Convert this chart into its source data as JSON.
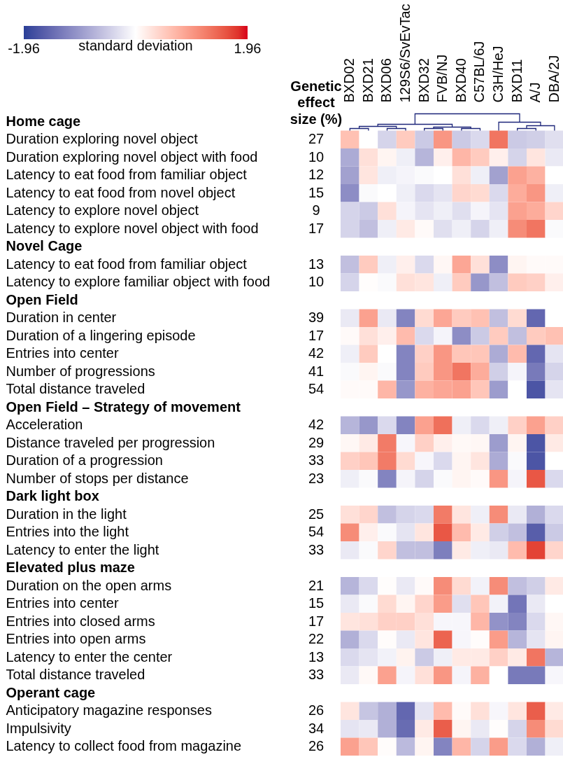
{
  "chart_data": {
    "type": "heatmap",
    "y2label": "Genetic effect size (%)",
    "clabel": "standard deviation",
    "clim": [
      -1.96,
      1.96
    ],
    "cticks": [
      -1.96,
      1.96
    ],
    "categories": [
      "BXD02",
      "BXD21",
      "BXD06",
      "129S6/SvEvTac",
      "BXD32",
      "FVB/NJ",
      "BXD40",
      "C57BL/6J",
      "C3H/HeJ",
      "BXD11",
      "A/J",
      "DBA/2J"
    ],
    "y_categories": [
      "Home cage",
      "Duration exploring novel object",
      "Duration exploring novel object with food",
      "Latency to eat food from familiar object",
      "Latency to eat food from novel object",
      "Latency to explore novel object",
      "Latency to explore novel object with food",
      "Novel Cage",
      "Latency to eat food from familiar object",
      "Latency to explore familiar object with food",
      "Open Field",
      "Duration in center",
      "Duration of a lingering episode",
      "Entries into center",
      "Number of progressions",
      "Total distance traveled",
      "Open Field – Strategy of movement",
      "Acceleration",
      "Distance traveled per progression",
      "Duration of a progression",
      "Number of stops per distance",
      "Dark light box",
      "Duration in the light",
      "Entries into the light",
      "Latency to enter the light",
      "Elevated plus maze",
      "Duration on the open arms",
      "Entries into center",
      "Entries into closed arms",
      "Entries into open arms",
      "Latency to enter the center",
      "Total distance traveled",
      "Operant cage",
      "Anticipatory magazine responses",
      "Impulsivity",
      "Latency to collect food from magazine"
    ],
    "y2_categories": [
      null,
      "27",
      "10",
      "12",
      "15",
      "9",
      "17",
      null,
      "13",
      "10",
      null,
      "39",
      "17",
      "42",
      "41",
      "54",
      null,
      "42",
      "29",
      "33",
      "23",
      null,
      "25",
      "54",
      "33",
      null,
      "21",
      "15",
      "17",
      "22",
      "13",
      "33",
      null,
      "26",
      "34",
      "26"
    ],
    "cells": [
      [
        null,
        null,
        null,
        null,
        null,
        null,
        null,
        null,
        null,
        null,
        null,
        null
      ],
      [
        0.6,
        0.0,
        -0.4,
        0.5,
        -0.5,
        1.0,
        -0.5,
        -0.35,
        1.3,
        -0.5,
        -0.45,
        -0.3
      ],
      [
        -0.8,
        0.3,
        0.1,
        -0.15,
        -0.7,
        0.15,
        0.7,
        0.5,
        0.15,
        -0.4,
        0.25,
        -0.2
      ],
      [
        -0.9,
        0.25,
        -0.15,
        -0.1,
        -0.05,
        0.0,
        0.3,
        -0.15,
        -0.9,
        0.9,
        0.75,
        0.0
      ],
      [
        -1.1,
        -0.05,
        0.0,
        -0.15,
        -0.35,
        -0.25,
        0.4,
        0.35,
        -0.35,
        0.8,
        1.0,
        -0.15
      ],
      [
        -0.4,
        -0.5,
        0.3,
        -0.1,
        -0.25,
        -0.15,
        -0.3,
        -0.1,
        -0.25,
        0.9,
        0.8,
        0.4
      ],
      [
        -0.4,
        -0.6,
        -0.15,
        0.2,
        0.05,
        -0.3,
        -0.15,
        -0.4,
        -0.15,
        1.1,
        1.3,
        -0.05
      ],
      [
        null,
        null,
        null,
        null,
        null,
        null,
        null,
        null,
        null,
        null,
        null,
        null
      ],
      [
        -0.6,
        0.5,
        -0.15,
        0.15,
        -0.35,
        0.08,
        0.85,
        0.3,
        -1.1,
        0.1,
        0.05,
        0.05
      ],
      [
        -0.4,
        0.02,
        -0.05,
        0.3,
        0.25,
        -0.15,
        0.5,
        -1.0,
        -0.6,
        0.5,
        0.45,
        0.15
      ],
      [
        null,
        null,
        null,
        null,
        null,
        null,
        null,
        null,
        null,
        null,
        null,
        null
      ],
      [
        -0.2,
        0.9,
        -0.2,
        -1.2,
        0.35,
        0.85,
        0.5,
        0.6,
        -0.6,
        0.35,
        -1.5,
        0.0
      ],
      [
        0.05,
        0.3,
        0.15,
        0.65,
        -0.35,
        -0.1,
        -1.1,
        -0.5,
        0.5,
        -0.6,
        0.5,
        0.6
      ],
      [
        -0.15,
        0.5,
        0.0,
        -1.2,
        0.45,
        1.0,
        0.55,
        0.55,
        -0.8,
        0.65,
        -1.5,
        -0.25
      ],
      [
        -0.05,
        0.1,
        -0.05,
        -1.2,
        0.5,
        1.0,
        1.3,
        0.8,
        -0.45,
        -0.1,
        -1.3,
        -0.4
      ],
      [
        0.05,
        0.05,
        0.7,
        -1.0,
        0.75,
        0.85,
        0.9,
        0.55,
        -0.95,
        0.0,
        -1.7,
        -0.25
      ],
      [
        null,
        null,
        null,
        null,
        null,
        null,
        null,
        null,
        null,
        null,
        null,
        null
      ],
      [
        -0.7,
        -1.0,
        -0.35,
        -1.2,
        0.9,
        1.35,
        -0.15,
        -0.35,
        -0.15,
        0.45,
        0.9,
        0.45
      ],
      [
        0.08,
        0.2,
        1.25,
        -0.08,
        0.45,
        0.15,
        0.06,
        0.08,
        -0.95,
        0.1,
        -1.7,
        0.2
      ],
      [
        0.45,
        0.55,
        1.25,
        0.35,
        -0.08,
        -0.35,
        0.1,
        0.25,
        -0.8,
        -0.05,
        -1.7,
        0.0
      ],
      [
        -0.15,
        -0.05,
        -1.2,
        -0.1,
        -0.4,
        -0.05,
        0.1,
        0.05,
        1.0,
        -0.1,
        1.55,
        -0.35
      ],
      [
        null,
        null,
        null,
        null,
        null,
        null,
        null,
        null,
        null,
        null,
        null,
        null
      ],
      [
        0.3,
        0.4,
        -0.6,
        -0.4,
        -0.35,
        1.25,
        0.25,
        -0.15,
        1.1,
        -0.2,
        -0.75,
        -0.35
      ],
      [
        1.1,
        0.15,
        -0.05,
        -0.25,
        0.25,
        1.55,
        0.65,
        0.2,
        -0.45,
        -0.6,
        -1.6,
        -0.5
      ],
      [
        -0.2,
        -0.05,
        0.4,
        -0.6,
        -0.6,
        -1.25,
        0.2,
        -0.15,
        -0.2,
        0.65,
        1.7,
        0.4
      ],
      [
        null,
        null,
        null,
        null,
        null,
        null,
        null,
        null,
        null,
        null,
        null,
        null
      ],
      [
        -0.7,
        -0.35,
        0.02,
        -0.2,
        0.05,
        1.1,
        0.35,
        -0.12,
        1.1,
        -0.6,
        -0.45,
        0.2
      ],
      [
        -0.2,
        -0.05,
        0.35,
        0.1,
        0.4,
        0.95,
        -0.3,
        0.55,
        -0.12,
        -1.35,
        -0.2,
        0.0
      ],
      [
        0.25,
        0.3,
        0.45,
        0.45,
        0.3,
        -0.08,
        -0.08,
        0.7,
        -1.05,
        -1.2,
        -0.35,
        0.08
      ],
      [
        -0.75,
        -0.35,
        0.03,
        -0.2,
        0.25,
        1.45,
        -0.08,
        0.03,
        0.95,
        -0.7,
        -0.25,
        0.1
      ],
      [
        -0.35,
        -0.25,
        -0.12,
        0.12,
        -0.5,
        -0.15,
        0.2,
        0.2,
        0.45,
        0.2,
        1.3,
        -0.7
      ],
      [
        -0.2,
        0.06,
        0.9,
        -0.1,
        0.3,
        1.0,
        -0.1,
        0.75,
        0.0,
        -1.3,
        -1.3,
        -0.08
      ],
      [
        null,
        null,
        null,
        null,
        null,
        null,
        null,
        null,
        null,
        null,
        null,
        null
      ],
      [
        0.25,
        -0.55,
        -0.75,
        -1.5,
        -0.25,
        0.65,
        0.05,
        0.3,
        -0.08,
        0.25,
        1.5,
        0.2
      ],
      [
        -0.25,
        -0.2,
        -0.75,
        -1.45,
        0.2,
        1.5,
        0.1,
        -0.2,
        0.02,
        -0.4,
        1.1,
        0.35
      ],
      [
        0.9,
        0.55,
        0.03,
        -0.65,
        0.1,
        -1.2,
        0.7,
        -0.4,
        0.95,
        -0.35,
        -0.75,
        -0.15
      ]
    ]
  }
}
